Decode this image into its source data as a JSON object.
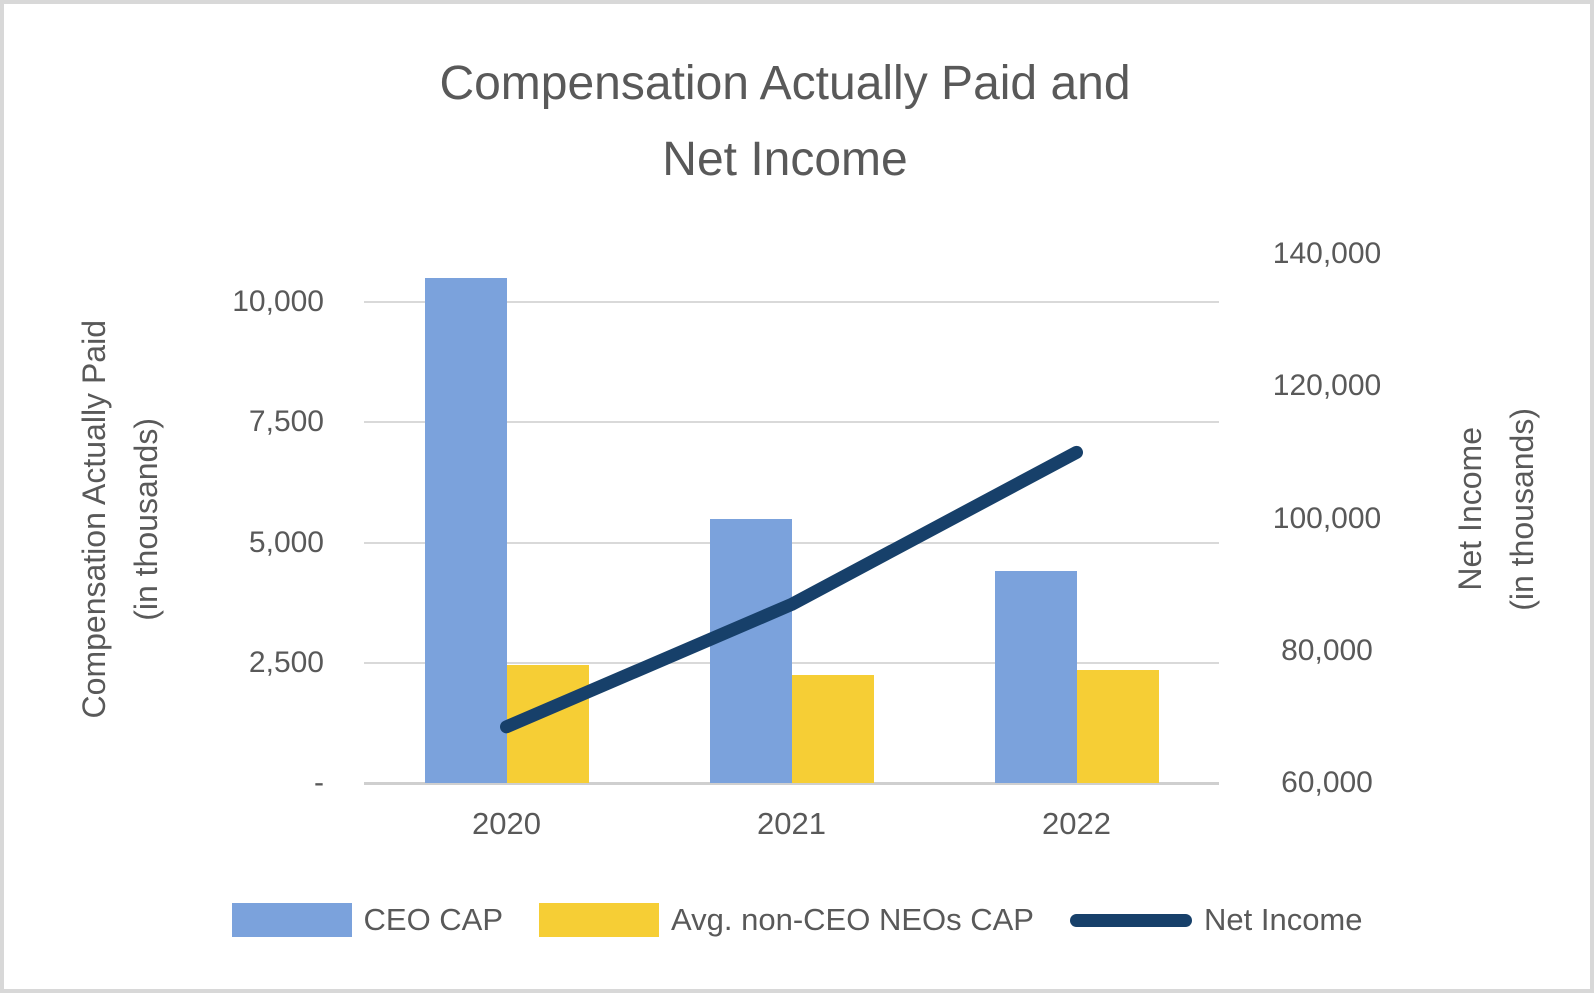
{
  "title": {
    "line1": "Compensation Actually Paid and",
    "line2": "Net Income"
  },
  "axes": {
    "left": {
      "title_line1": "Compensation Actually Paid",
      "title_line2": "(in thousands)",
      "tick_labels": [
        "-",
        "2,500",
        "5,000",
        "7,500",
        "10,000"
      ]
    },
    "right": {
      "title_line1": "Net Income",
      "title_line2": "(in thousands)",
      "tick_labels": [
        "60,000",
        "80,000",
        "100,000",
        "120,000",
        "140,000"
      ]
    },
    "category": {
      "labels": [
        "2020",
        "2021",
        "2022"
      ]
    }
  },
  "legend": {
    "items": [
      {
        "label": "CEO CAP",
        "swatch": "bar",
        "color": "#7BA2DC"
      },
      {
        "label": "Avg. non-CEO NEOs CAP",
        "swatch": "bar",
        "color": "#F6CE35"
      },
      {
        "label": "Net Income",
        "swatch": "line",
        "color": "#17406A"
      }
    ]
  },
  "colors": {
    "ceo_cap_bar": "#7BA2DC",
    "neo_cap_bar": "#F6CE35",
    "net_income_line": "#17406A",
    "gridline": "#D9D9D9",
    "text": "#595959",
    "canvas_border": "#D8D8D8"
  },
  "chart_data": {
    "type": "bar",
    "subtype": "clustered-bar-with-line-combo",
    "title": "Compensation Actually Paid and Net Income",
    "categories": [
      "2020",
      "2021",
      "2022"
    ],
    "series": [
      {
        "name": "CEO CAP",
        "type": "bar",
        "axis": "left",
        "color": "#7BA2DC",
        "values": [
          10500,
          5500,
          4400
        ]
      },
      {
        "name": "Avg. non-CEO NEOs CAP",
        "type": "bar",
        "axis": "left",
        "color": "#F6CE35",
        "values": [
          2450,
          2250,
          2350
        ]
      },
      {
        "name": "Net Income",
        "type": "line",
        "axis": "right",
        "color": "#17406A",
        "values": [
          68500,
          87000,
          110000
        ]
      }
    ],
    "left_axis": {
      "label": "Compensation Actually Paid (in thousands)",
      "min": 0,
      "max": 11000,
      "tick_interval": 2500,
      "tick_values": [
        0,
        2500,
        5000,
        7500,
        10000
      ]
    },
    "right_axis": {
      "label": "Net Income (in thousands)",
      "min": 60000,
      "max": 140000,
      "tick_interval": 20000,
      "tick_values": [
        60000,
        80000,
        100000,
        120000,
        140000
      ]
    },
    "grid": "horizontal",
    "legend_position": "bottom"
  }
}
